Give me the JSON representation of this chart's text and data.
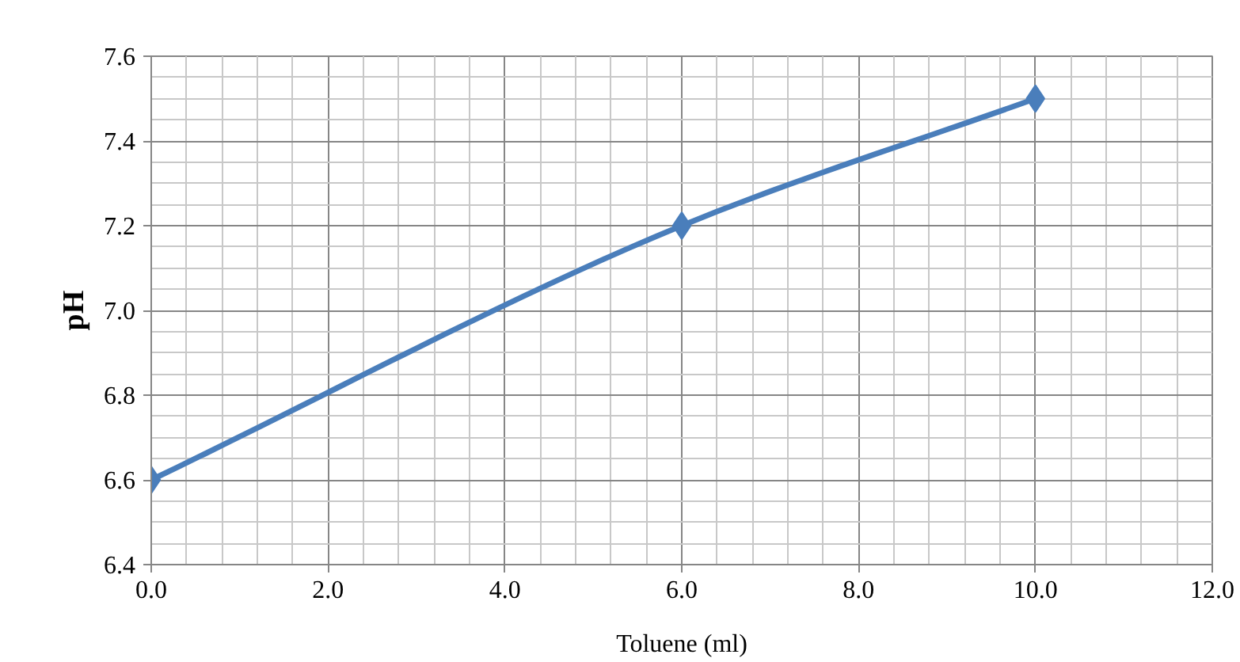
{
  "chart_data": {
    "type": "line",
    "xlabel": "Toluene (ml)",
    "ylabel": "pH",
    "x": [
      0,
      6,
      10
    ],
    "series": [
      {
        "color": "#4a7ebb",
        "values": [
          6.6,
          7.2,
          7.5
        ]
      }
    ],
    "xlim": [
      0,
      12
    ],
    "ylim": [
      6.4,
      7.6
    ],
    "xticks": [
      {
        "value": 0,
        "label": "0.0"
      },
      {
        "value": 2,
        "label": "2.0"
      },
      {
        "value": 4,
        "label": "4.0"
      },
      {
        "value": 6,
        "label": "6.0"
      },
      {
        "value": 8,
        "label": "8.0"
      },
      {
        "value": 10,
        "label": "10.0"
      },
      {
        "value": 12,
        "label": "12.0"
      }
    ],
    "yticks": [
      6.4,
      6.6,
      6.8,
      {
        "value": 7.0,
        "label": "7.0"
      },
      7.2,
      7.4,
      7.6
    ],
    "grid": true,
    "marker": "diamond",
    "line_style": "solid"
  }
}
